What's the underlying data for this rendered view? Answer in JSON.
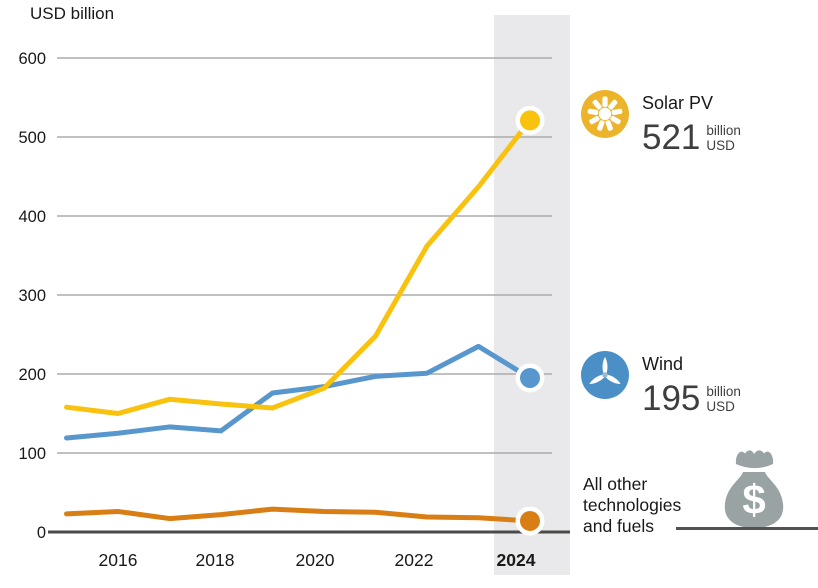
{
  "chart_data": {
    "type": "line",
    "title": "USD billion",
    "x": [
      2015,
      2016,
      2017,
      2018,
      2019,
      2020,
      2021,
      2022,
      2023,
      2024
    ],
    "x_tick_labels": [
      "2016",
      "2018",
      "2020",
      "2022",
      "2024"
    ],
    "bold_x_tick": "2024",
    "highlight_column": "2024",
    "y_ticks": [
      0,
      100,
      200,
      300,
      400,
      500,
      600
    ],
    "ylim": [
      0,
      620
    ],
    "grid": true,
    "legend_position": "right",
    "series": [
      {
        "name": "Solar PV",
        "color": "#F8C20E",
        "values": [
          158,
          150,
          168,
          162,
          157,
          182,
          248,
          362,
          437,
          521
        ],
        "end_value_label": "521"
      },
      {
        "name": "Wind",
        "color": "#5897CD",
        "values": [
          119,
          125,
          133,
          128,
          176,
          184,
          197,
          201,
          235,
          195
        ],
        "end_value_label": "195"
      },
      {
        "name": "All other technologies and fuels",
        "color": "#D97E14",
        "values": [
          23,
          26,
          17,
          22,
          29,
          26,
          25,
          19,
          18,
          14
        ]
      }
    ],
    "colors": {
      "highlight_band": "#E9E9EB",
      "gridline": "#ABABAB",
      "axis_line": "#4A4A4A",
      "text": "#191919"
    }
  },
  "legend": {
    "solar": {
      "label": "Solar PV",
      "value": "521",
      "unit_line1": "billion",
      "unit_line2": "USD",
      "icon": "sun-icon",
      "icon_color": "#ECB42A"
    },
    "wind": {
      "label": "Wind",
      "value": "195",
      "unit_line1": "billion",
      "unit_line2": "USD",
      "icon": "wind-turbine-icon",
      "icon_color": "#4A90C6"
    },
    "other": {
      "label": "All other technologies and fuels",
      "currency_symbol": "$",
      "icon": "money-bag-icon",
      "icon_color": "#99A3A4"
    }
  }
}
